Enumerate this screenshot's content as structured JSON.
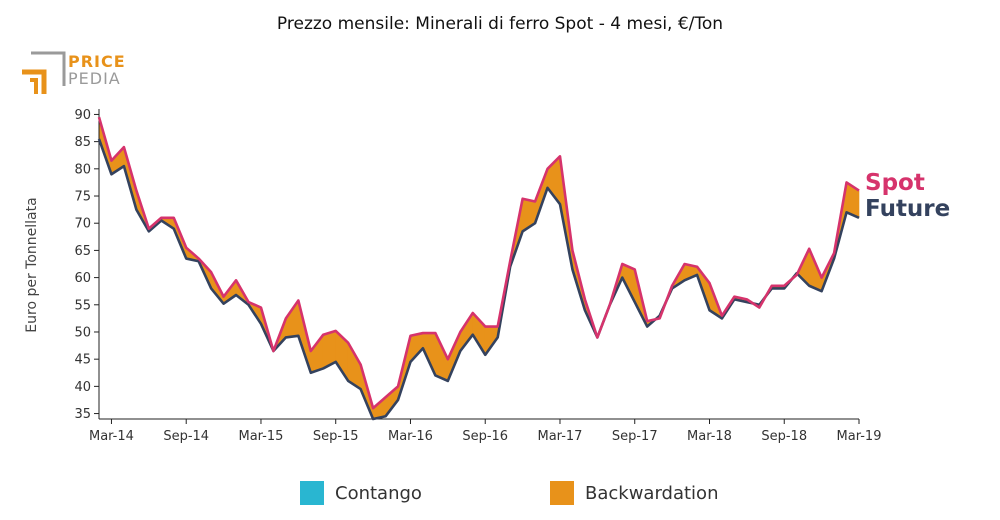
{
  "logo": {
    "line1": "PRICE",
    "line2": "PEDIA"
  },
  "colors": {
    "spot": "#d6336c",
    "future": "#34425e",
    "contango": "#29b6d1",
    "backwardation": "#e8921a",
    "logo_orange": "#e8921a",
    "logo_gray": "#9a9a9a"
  },
  "chart_data": {
    "type": "area",
    "title": "Prezzo mensile: Minerali di ferro Spot - 4 mesi, €/Ton",
    "ylabel": "Euro per Tonnellata",
    "xlabel": "",
    "ylim": [
      34,
      91
    ],
    "yticks": [
      35,
      40,
      45,
      50,
      55,
      60,
      65,
      70,
      75,
      80,
      85,
      90
    ],
    "xticks": [
      "Mar-14",
      "Sep-14",
      "Mar-15",
      "Sep-15",
      "Mar-16",
      "Sep-16",
      "Mar-17",
      "Sep-17",
      "Mar-18",
      "Sep-18",
      "Mar-19"
    ],
    "x": [
      "Feb-14",
      "Mar-14",
      "Apr-14",
      "May-14",
      "Jun-14",
      "Jul-14",
      "Aug-14",
      "Sep-14",
      "Oct-14",
      "Nov-14",
      "Dec-14",
      "Jan-15",
      "Feb-15",
      "Mar-15",
      "Apr-15",
      "May-15",
      "Jun-15",
      "Jul-15",
      "Aug-15",
      "Sep-15",
      "Oct-15",
      "Nov-15",
      "Dec-15",
      "Jan-16",
      "Feb-16",
      "Mar-16",
      "Apr-16",
      "May-16",
      "Jun-16",
      "Jul-16",
      "Aug-16",
      "Sep-16",
      "Oct-16",
      "Nov-16",
      "Dec-16",
      "Jan-17",
      "Feb-17",
      "Mar-17",
      "Apr-17",
      "May-17",
      "Jun-17",
      "Jul-17",
      "Aug-17",
      "Sep-17",
      "Oct-17",
      "Nov-17",
      "Dec-17",
      "Jan-18",
      "Feb-18",
      "Mar-18",
      "Apr-18",
      "May-18",
      "Jun-18",
      "Jul-18",
      "Aug-18",
      "Sep-18",
      "Oct-18",
      "Nov-18",
      "Dec-18",
      "Jan-19",
      "Feb-19",
      "Mar-19"
    ],
    "series": [
      {
        "name": "Spot",
        "values": [
          89.5,
          81.5,
          84,
          76,
          69,
          71,
          71,
          65.5,
          63.5,
          61,
          56.5,
          59.5,
          55.5,
          54.5,
          46.5,
          52.5,
          55.8,
          46.5,
          49.5,
          50.2,
          48,
          44,
          36,
          38,
          40,
          49.3,
          49.8,
          49.8,
          45,
          50,
          53.5,
          51,
          51,
          63,
          74.5,
          74,
          80,
          82.3,
          65,
          56,
          49,
          55,
          62.5,
          61.5,
          52,
          52.5,
          58.5,
          62.5,
          62,
          59,
          53,
          56.5,
          56,
          54.5,
          58.5,
          58.5,
          60.5,
          65.3,
          60,
          64.5,
          77.5,
          76
        ]
      },
      {
        "name": "Future",
        "values": [
          85.5,
          79,
          80.5,
          72.5,
          68.5,
          70.5,
          69,
          63.5,
          63,
          58,
          55.2,
          56.8,
          55,
          51.5,
          46.5,
          49,
          49.3,
          42.5,
          43.3,
          44.5,
          41,
          39.5,
          34,
          34.5,
          37.5,
          44.5,
          47,
          42,
          41,
          46.5,
          49.5,
          45.8,
          49,
          62,
          68.5,
          70,
          76.5,
          73.5,
          61.5,
          54,
          49,
          55,
          60,
          55.5,
          51,
          53,
          58,
          59.5,
          60.5,
          54,
          52.5,
          56,
          55.5,
          55,
          58,
          58,
          60.8,
          58.5,
          57.5,
          63.5,
          72,
          71
        ]
      }
    ],
    "legend": [
      {
        "name": "Contango",
        "color": "#29b6d1"
      },
      {
        "name": "Backwardation",
        "color": "#e8921a"
      }
    ],
    "legend_placement": "bottom",
    "grid": false
  }
}
